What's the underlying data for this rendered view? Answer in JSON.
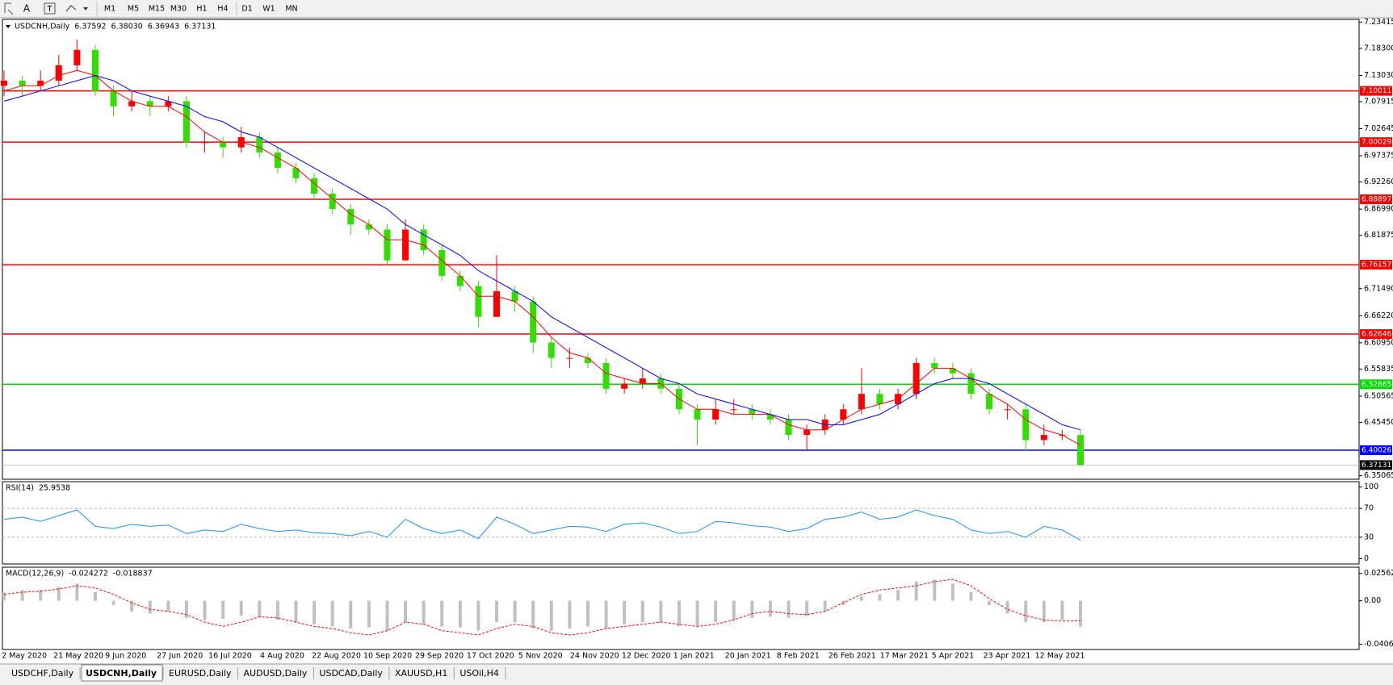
{
  "toolbar": {
    "letter": "A",
    "periods": [
      "M1",
      "M5",
      "M15",
      "M30",
      "H1",
      "H4",
      "D1",
      "W1",
      "MN"
    ]
  },
  "chart_data": [
    {
      "type": "candlestick",
      "title": "USDCNH,Daily",
      "header_values": [
        "6.37592",
        "6.38030",
        "6.36943",
        "6.37131"
      ],
      "up_color": "#ff0000",
      "down_color": "#33dd00",
      "open": [
        7.11,
        7.12,
        7.11,
        7.12,
        7.15,
        7.18,
        7.1,
        7.07,
        7.08,
        7.07,
        7.08,
        7.0,
        7.0,
        6.99,
        7.01,
        6.98,
        6.95,
        6.93,
        6.9,
        6.87,
        6.84,
        6.83,
        6.77,
        6.83,
        6.79,
        6.74,
        6.72,
        6.66,
        6.71,
        6.69,
        6.61,
        6.58,
        6.58,
        6.57,
        6.52,
        6.53,
        6.54,
        6.52,
        6.48,
        6.46,
        6.48,
        6.48,
        6.47,
        6.46,
        6.43,
        6.44,
        6.46,
        6.48,
        6.51,
        6.49,
        6.51,
        6.57,
        6.56,
        6.55,
        6.51,
        6.48,
        6.48,
        6.42,
        6.43,
        6.43
      ],
      "high": [
        7.14,
        7.13,
        7.14,
        7.17,
        7.2,
        7.19,
        7.11,
        7.1,
        7.09,
        7.09,
        7.09,
        7.02,
        7.01,
        7.03,
        7.02,
        6.99,
        6.96,
        6.94,
        6.91,
        6.88,
        6.85,
        6.84,
        6.85,
        6.84,
        6.8,
        6.75,
        6.73,
        6.78,
        6.72,
        6.7,
        6.62,
        6.6,
        6.59,
        6.58,
        6.54,
        6.56,
        6.55,
        6.53,
        6.49,
        6.5,
        6.5,
        6.49,
        6.48,
        6.47,
        6.45,
        6.47,
        6.49,
        6.56,
        6.52,
        6.52,
        6.58,
        6.58,
        6.57,
        6.56,
        6.52,
        6.49,
        6.49,
        6.45,
        6.44,
        6.44
      ],
      "low": [
        7.09,
        7.09,
        7.1,
        7.11,
        7.14,
        7.09,
        7.05,
        7.06,
        7.05,
        7.06,
        6.99,
        6.98,
        6.97,
        6.98,
        6.97,
        6.94,
        6.92,
        6.89,
        6.86,
        6.82,
        6.82,
        6.76,
        6.77,
        6.78,
        6.73,
        6.71,
        6.64,
        6.66,
        6.67,
        6.59,
        6.56,
        6.56,
        6.56,
        6.51,
        6.51,
        6.52,
        6.51,
        6.47,
        6.41,
        6.45,
        6.47,
        6.46,
        6.45,
        6.42,
        6.4,
        6.43,
        6.45,
        6.47,
        6.48,
        6.48,
        6.5,
        6.55,
        6.54,
        6.5,
        6.47,
        6.46,
        6.4,
        6.41,
        6.42,
        6.36943
      ],
      "close": [
        7.12,
        7.11,
        7.12,
        7.15,
        7.18,
        7.1,
        7.07,
        7.08,
        7.07,
        7.08,
        7.0,
        7.0,
        6.99,
        7.01,
        6.98,
        6.95,
        6.93,
        6.9,
        6.87,
        6.84,
        6.83,
        6.77,
        6.83,
        6.79,
        6.74,
        6.72,
        6.66,
        6.71,
        6.69,
        6.61,
        6.58,
        6.58,
        6.57,
        6.52,
        6.53,
        6.54,
        6.52,
        6.48,
        6.46,
        6.48,
        6.48,
        6.47,
        6.46,
        6.43,
        6.44,
        6.46,
        6.48,
        6.51,
        6.49,
        6.51,
        6.57,
        6.56,
        6.55,
        6.51,
        6.48,
        6.48,
        6.42,
        6.43,
        6.43,
        6.37131
      ],
      "overlays": [
        {
          "color": "#ff0000",
          "values": [
            7.1,
            7.11,
            7.11,
            7.13,
            7.14,
            7.13,
            7.1,
            7.08,
            7.07,
            7.07,
            7.05,
            7.02,
            7.0,
            7.0,
            6.99,
            6.97,
            6.95,
            6.92,
            6.89,
            6.86,
            6.84,
            6.81,
            6.81,
            6.8,
            6.77,
            6.74,
            6.7,
            6.7,
            6.69,
            6.66,
            6.62,
            6.59,
            6.58,
            6.55,
            6.54,
            6.53,
            6.53,
            6.5,
            6.48,
            6.48,
            6.47,
            6.47,
            6.47,
            6.45,
            6.44,
            6.44,
            6.46,
            6.48,
            6.49,
            6.5,
            6.53,
            6.56,
            6.56,
            6.54,
            6.51,
            6.49,
            6.46,
            6.44,
            6.43,
            6.41
          ]
        },
        {
          "color": "#0000ff",
          "values": [
            7.08,
            7.09,
            7.1,
            7.11,
            7.12,
            7.13,
            7.12,
            7.1,
            7.09,
            7.08,
            7.07,
            7.05,
            7.04,
            7.02,
            7.01,
            6.99,
            6.97,
            6.95,
            6.93,
            6.91,
            6.89,
            6.87,
            6.84,
            6.82,
            6.8,
            6.78,
            6.75,
            6.73,
            6.71,
            6.69,
            6.66,
            6.64,
            6.62,
            6.6,
            6.58,
            6.56,
            6.54,
            6.53,
            6.51,
            6.5,
            6.49,
            6.48,
            6.47,
            6.46,
            6.46,
            6.45,
            6.45,
            6.46,
            6.47,
            6.49,
            6.51,
            6.53,
            6.54,
            6.54,
            6.53,
            6.51,
            6.49,
            6.47,
            6.45,
            6.44
          ]
        }
      ],
      "levels": [
        {
          "value": 7.10011,
          "color": "#ff0000"
        },
        {
          "value": 7.00029,
          "color": "#ff0000"
        },
        {
          "value": 6.88897,
          "color": "#ff0000"
        },
        {
          "value": 6.76157,
          "color": "#ff0000"
        },
        {
          "value": 6.62646,
          "color": "#ff0000"
        },
        {
          "value": 6.52865,
          "color": "#00dd00"
        },
        {
          "value": 6.40026,
          "color": "#0000ff"
        }
      ],
      "ylim": [
        6.3437,
        7.2394
      ],
      "yticks": [
        7.23415,
        {
          "value": 7.183,
          "label": "7.18300"
        },
        {
          "value": 7.1303,
          "label": "7.13030"
        },
        7.07915,
        7.02645,
        6.97375,
        {
          "value": 6.9226,
          "label": "6.92260"
        },
        {
          "value": 6.8699,
          "label": "6.86990"
        },
        6.81875,
        {
          "value": 6.7149,
          "label": "6.71490"
        },
        {
          "value": 6.6622,
          "label": "6.66220"
        },
        {
          "value": 6.6095,
          "label": "6.60950"
        },
        6.55835,
        6.50565,
        {
          "value": 6.4545,
          "label": "6.45450"
        },
        6.35065
      ]
    },
    {
      "type": "line",
      "title": "RSI(14)",
      "color": "#1e90ff",
      "values": [
        55,
        58,
        52,
        60,
        68,
        45,
        42,
        48,
        45,
        47,
        35,
        40,
        38,
        48,
        42,
        38,
        40,
        36,
        35,
        32,
        38,
        30,
        55,
        42,
        35,
        40,
        28,
        58,
        48,
        35,
        40,
        45,
        44,
        38,
        48,
        50,
        44,
        35,
        38,
        52,
        50,
        46,
        44,
        38,
        42,
        55,
        58,
        65,
        55,
        58,
        68,
        60,
        55,
        40,
        35,
        38,
        30,
        45,
        40,
        25.9538
      ],
      "levels": [
        70,
        30
      ],
      "ylim": [
        -7.4,
        107.4
      ],
      "yticks": [
        100,
        70,
        30,
        0
      ]
    },
    {
      "type": "macd",
      "title": "MACD(12,26,9)",
      "histogram_color": "#c0c0c0",
      "signal_color": "#ff0000",
      "histogram": [
        0.008,
        0.01,
        0.01,
        0.013,
        0.016,
        0.008,
        -0.004,
        -0.01,
        -0.012,
        -0.01,
        -0.016,
        -0.018,
        -0.017,
        -0.014,
        -0.015,
        -0.018,
        -0.02,
        -0.022,
        -0.024,
        -0.026,
        -0.025,
        -0.028,
        -0.02,
        -0.022,
        -0.024,
        -0.025,
        -0.028,
        -0.02,
        -0.02,
        -0.026,
        -0.028,
        -0.026,
        -0.024,
        -0.026,
        -0.022,
        -0.02,
        -0.02,
        -0.024,
        -0.024,
        -0.02,
        -0.018,
        -0.016,
        -0.015,
        -0.016,
        -0.014,
        -0.01,
        -0.004,
        0.004,
        0.006,
        0.01,
        0.018,
        0.02,
        0.016,
        0.008,
        -0.004,
        -0.012,
        -0.02,
        -0.02,
        -0.018,
        -0.024272
      ],
      "signal": [
        0.006,
        0.008,
        0.009,
        0.011,
        0.014,
        0.012,
        0.006,
        -0.002,
        -0.008,
        -0.01,
        -0.013,
        -0.02,
        -0.024,
        -0.02,
        -0.015,
        -0.016,
        -0.02,
        -0.024,
        -0.026,
        -0.03,
        -0.032,
        -0.028,
        -0.02,
        -0.022,
        -0.028,
        -0.03,
        -0.032,
        -0.026,
        -0.022,
        -0.024,
        -0.03,
        -0.032,
        -0.03,
        -0.026,
        -0.024,
        -0.022,
        -0.02,
        -0.022,
        -0.024,
        -0.022,
        -0.018,
        -0.012,
        -0.01,
        -0.012,
        -0.013,
        -0.01,
        -0.002,
        0.006,
        0.01,
        0.012,
        0.014,
        0.018,
        0.02,
        0.014,
        0.002,
        -0.008,
        -0.014,
        -0.018,
        -0.019,
        -0.018837
      ],
      "ylim": [
        -0.0456,
        0.0314
      ],
      "yticks": [
        0.025623,
        {
          "value": 0,
          "label": "0.00"
        },
        -0.040683
      ],
      "x_labels": [
        "2 May 2020",
        "21 May 2020",
        "9 Jun 2020",
        "27 Jun 2020",
        "16 Jul 2020",
        "4 Aug 2020",
        "22 Aug 2020",
        "10 Sep 2020",
        "29 Sep 2020",
        "17 Oct 2020",
        "5 Nov 2020",
        "24 Nov 2020",
        "12 Dec 2020",
        "1 Jan 2021",
        "20 Jan 2021",
        "8 Feb 2021",
        "26 Feb 2021",
        "17 Mar 2021",
        "5 Apr 2021",
        "23 Apr 2021",
        "12 May 2021"
      ]
    }
  ],
  "tabs": [
    "USDCHF,Daily",
    "USDCNH,Daily",
    "EURUSD,Daily",
    "AUDUSD,Daily",
    "USDCAD,Daily",
    "XAUUSD,H1",
    "USOil,H4"
  ],
  "active_tab": 1
}
